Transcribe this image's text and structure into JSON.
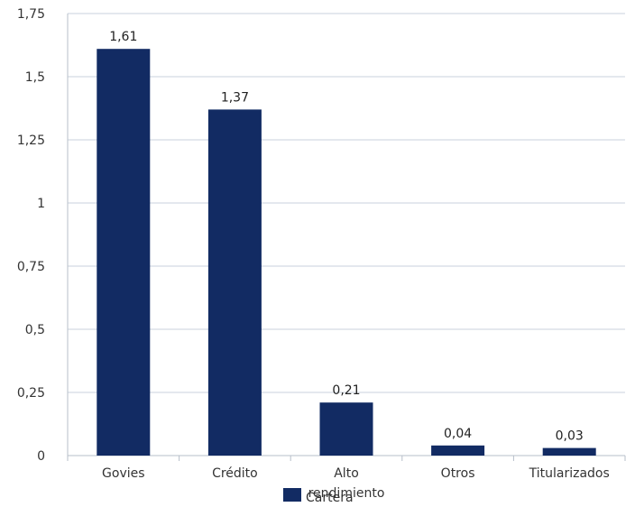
{
  "chart_data": {
    "type": "bar",
    "categories": [
      "Govies",
      "Crédito",
      "Alto\nrendimiento",
      "Otros",
      "Titularizados"
    ],
    "series": [
      {
        "name": "Cartera",
        "values": [
          1.61,
          1.37,
          0.21,
          0.04,
          0.03
        ]
      }
    ],
    "data_labels": [
      "1,61",
      "1,37",
      "0,21",
      "0,04",
      "0,03"
    ],
    "y_ticks": [
      0,
      0.25,
      0.5,
      0.75,
      1,
      1.25,
      1.5,
      1.75
    ],
    "y_tick_labels": [
      "0",
      "0,25",
      "0,5",
      "0,75",
      "1",
      "1,25",
      "1,5",
      "1,75"
    ],
    "ylim": [
      0,
      1.75
    ],
    "grid": true,
    "legend": "bottom",
    "colors": {
      "bar": "#122b63"
    }
  }
}
